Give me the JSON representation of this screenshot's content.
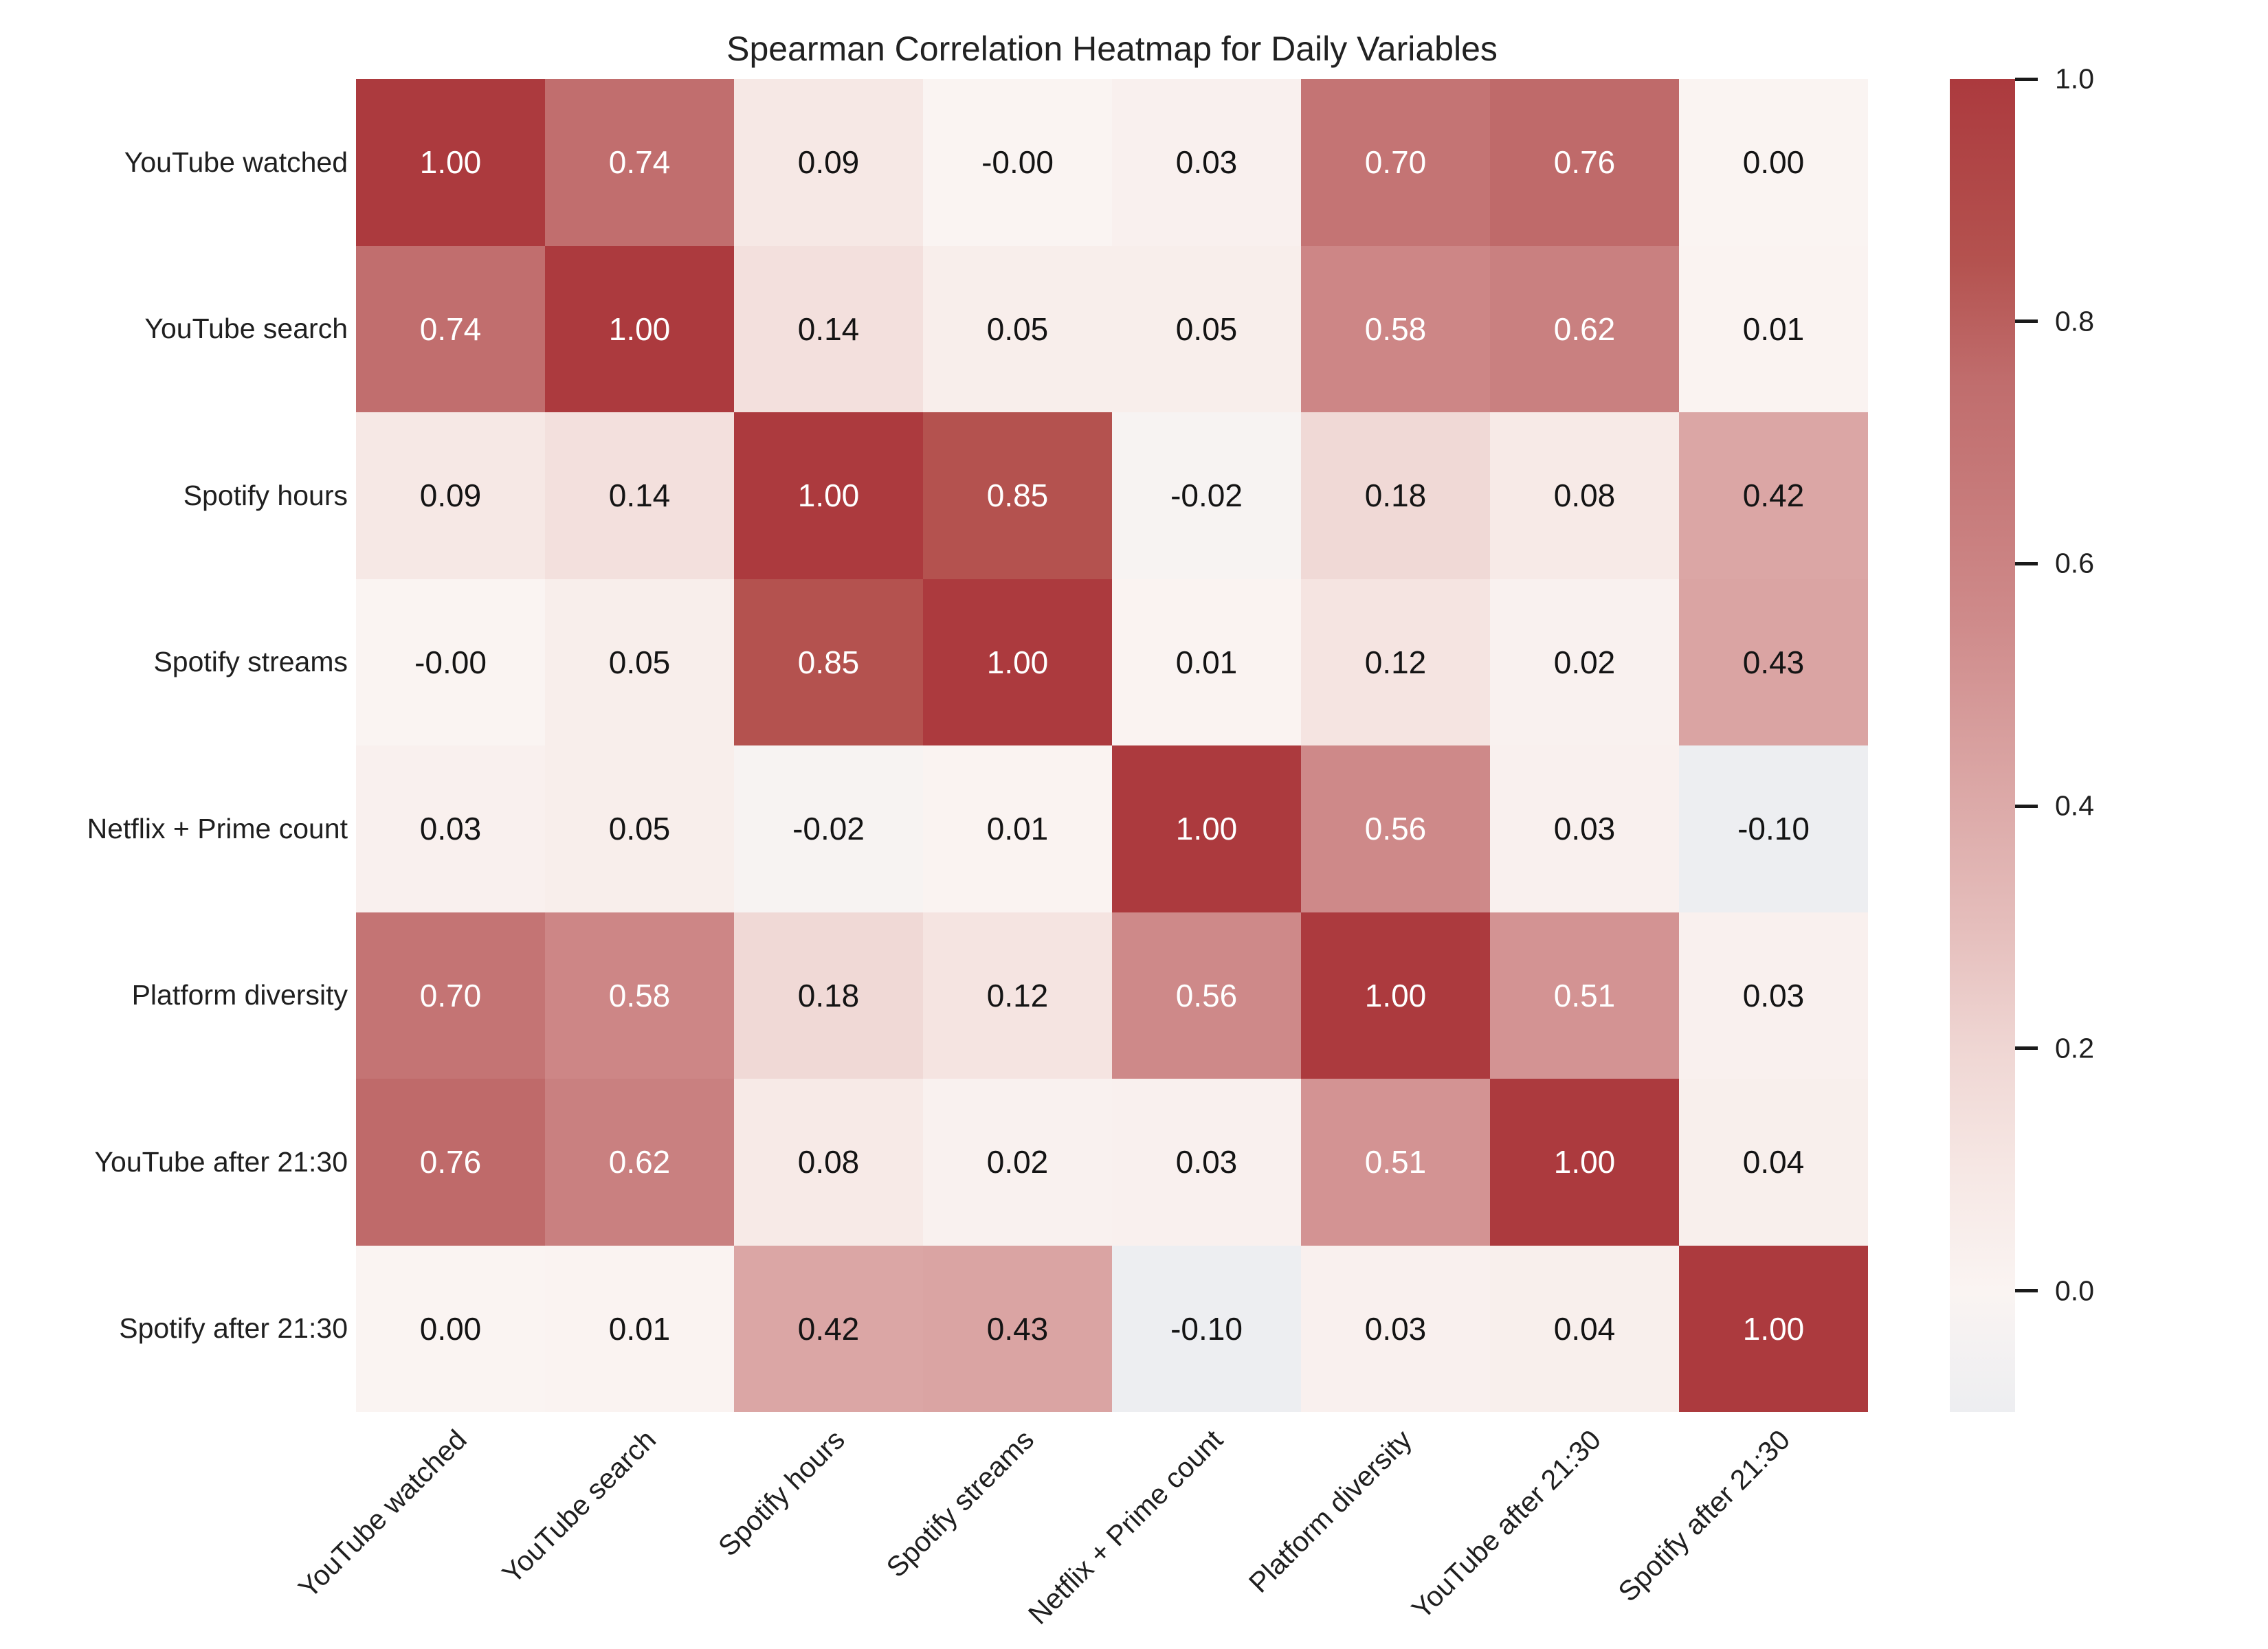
{
  "chart_data": {
    "type": "heatmap",
    "title": "Spearman Correlation Heatmap for Daily Variables",
    "variables": [
      "YouTube watched",
      "YouTube search",
      "Spotify hours",
      "Spotify streams",
      "Netflix + Prime count",
      "Platform diversity",
      "YouTube after 21:30",
      "Spotify after 21:30"
    ],
    "values": [
      [
        1.0,
        0.74,
        0.09,
        -0.0,
        0.03,
        0.7,
        0.76,
        0.0
      ],
      [
        0.74,
        1.0,
        0.14,
        0.05,
        0.05,
        0.58,
        0.62,
        0.01
      ],
      [
        0.09,
        0.14,
        1.0,
        0.85,
        -0.02,
        0.18,
        0.08,
        0.42
      ],
      [
        -0.0,
        0.05,
        0.85,
        1.0,
        0.01,
        0.12,
        0.02,
        0.43
      ],
      [
        0.03,
        0.05,
        -0.02,
        0.01,
        1.0,
        0.56,
        0.03,
        -0.1
      ],
      [
        0.7,
        0.58,
        0.18,
        0.12,
        0.56,
        1.0,
        0.51,
        0.03
      ],
      [
        0.76,
        0.62,
        0.08,
        0.02,
        0.03,
        0.51,
        1.0,
        0.04
      ],
      [
        0.0,
        0.01,
        0.42,
        0.43,
        -0.1,
        0.03,
        0.04,
        1.0
      ]
    ],
    "cell_labels": [
      [
        "1.00",
        "0.74",
        "0.09",
        "-0.00",
        "0.03",
        "0.70",
        "0.76",
        "0.00"
      ],
      [
        "0.74",
        "1.00",
        "0.14",
        "0.05",
        "0.05",
        "0.58",
        "0.62",
        "0.01"
      ],
      [
        "0.09",
        "0.14",
        "1.00",
        "0.85",
        "-0.02",
        "0.18",
        "0.08",
        "0.42"
      ],
      [
        "-0.00",
        "0.05",
        "0.85",
        "1.00",
        "0.01",
        "0.12",
        "0.02",
        "0.43"
      ],
      [
        "0.03",
        "0.05",
        "-0.02",
        "0.01",
        "1.00",
        "0.56",
        "0.03",
        "-0.10"
      ],
      [
        "0.70",
        "0.58",
        "0.18",
        "0.12",
        "0.56",
        "1.00",
        "0.51",
        "0.03"
      ],
      [
        "0.76",
        "0.62",
        "0.08",
        "0.02",
        "0.03",
        "0.51",
        "1.00",
        "0.04"
      ],
      [
        "0.00",
        "0.01",
        "0.42",
        "0.43",
        "-0.10",
        "0.03",
        "0.04",
        "1.00"
      ]
    ],
    "vmin": -0.1,
    "vmax": 1.0,
    "text_color_threshold": 0.5,
    "cell_text_light": "#ffffff",
    "cell_text_dark": "#141414",
    "colormap": {
      "stops": [
        [
          -0.1,
          "#edeef1"
        ],
        [
          0.0,
          "#faf4f2"
        ],
        [
          0.1,
          "#f6e7e4"
        ],
        [
          0.2,
          "#efd6d3"
        ],
        [
          0.3,
          "#e5bebc"
        ],
        [
          0.45,
          "#d8a09f"
        ],
        [
          0.55,
          "#cf8b8b"
        ],
        [
          0.65,
          "#c77b7b"
        ],
        [
          0.75,
          "#c06d6d"
        ],
        [
          0.85,
          "#b4524f"
        ],
        [
          1.0,
          "#ac3a3e"
        ]
      ]
    },
    "colorbar_ticks": [
      {
        "value": 1.0,
        "label": "1.0"
      },
      {
        "value": 0.8,
        "label": "0.8"
      },
      {
        "value": 0.6,
        "label": "0.6"
      },
      {
        "value": 0.4,
        "label": "0.4"
      },
      {
        "value": 0.2,
        "label": "0.2"
      },
      {
        "value": 0.0,
        "label": "0.0"
      }
    ],
    "legend_position": "right",
    "grid": false
  }
}
